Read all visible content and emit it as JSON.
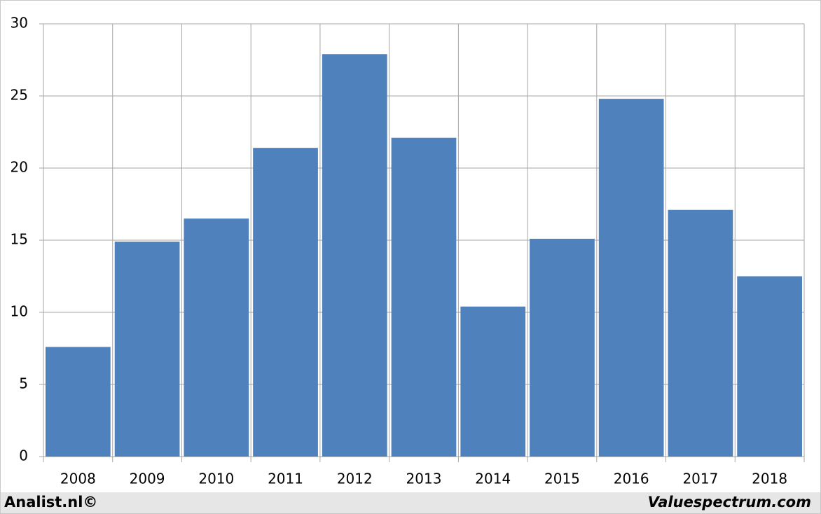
{
  "chart_data": {
    "type": "bar",
    "categories": [
      "2008",
      "2009",
      "2010",
      "2011",
      "2012",
      "2013",
      "2014",
      "2015",
      "2016",
      "2017",
      "2018"
    ],
    "values": [
      7.6,
      14.9,
      16.5,
      21.4,
      27.9,
      22.1,
      10.4,
      15.1,
      24.8,
      17.1,
      12.5
    ],
    "color": "#4f81bd",
    "ylim": [
      0,
      30
    ],
    "yticks": [
      0,
      5,
      10,
      15,
      20,
      25,
      30
    ],
    "grid": true
  },
  "footer": {
    "left": "Analist.nl©",
    "right": "Valuespectrum.com"
  }
}
